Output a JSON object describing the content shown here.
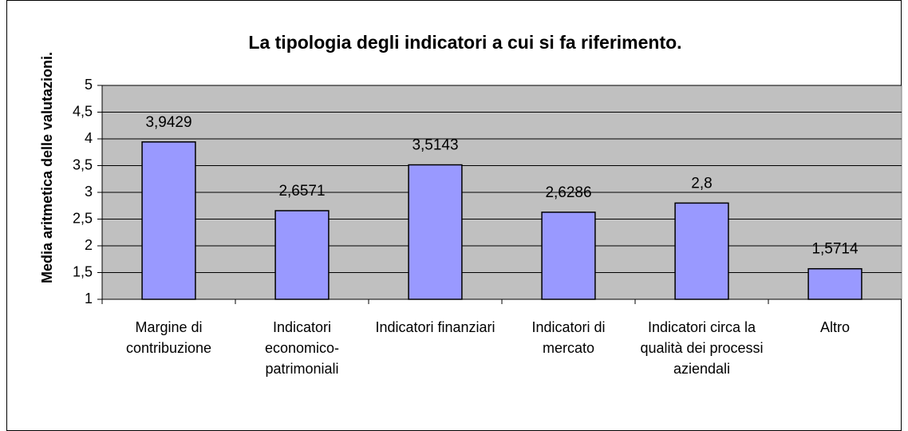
{
  "chart_data": {
    "type": "bar",
    "title": "La tipologia degli indicatori a cui si fa riferimento.",
    "y_label": "Media aritmetica delle valutazioni.",
    "categories": [
      "Margine di contribuzione",
      "Indicatori economico-patrimoniali",
      "Indicatori finanziari",
      "Indicatori di mercato",
      "Indicatori circa la qualità dei processi aziendali",
      "Altro"
    ],
    "values": [
      3.9429,
      2.6571,
      3.5143,
      2.6286,
      2.8,
      1.5714
    ],
    "value_labels": [
      "3,9429",
      "2,6571",
      "3,5143",
      "2,6286",
      "2,8",
      "1,5714"
    ],
    "color": "#9999ff",
    "ylim": [
      1,
      5
    ],
    "yticks": [
      1,
      {
        "value": 1.5,
        "label": "1,5"
      },
      2,
      {
        "value": 2.5,
        "label": "2,5"
      },
      3,
      {
        "value": 3.5,
        "label": "3,5"
      },
      4,
      {
        "value": 4.5,
        "label": "4,5"
      },
      5
    ],
    "grid": true
  }
}
